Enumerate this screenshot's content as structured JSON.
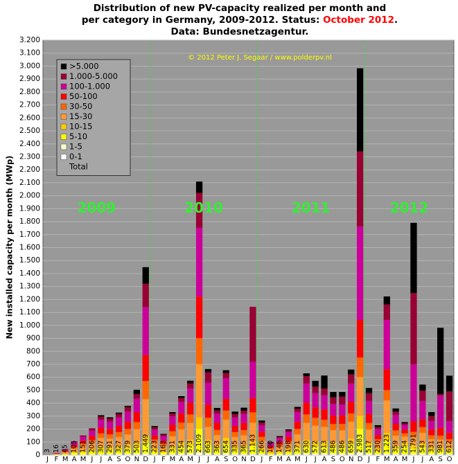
{
  "chart_data": {
    "type": "stacked_bar",
    "title": [
      "Distribution  of new PV-capacity realized per month and",
      "per category in Germany, 2009-2012. Status: ",
      "October 2012",
      ".",
      "Data: Bundesnetzagentur."
    ],
    "y_label": "New installed capacity per month (MWp)",
    "copyright": "© 2012 Peter J. Segaar / www.polderpv.nl",
    "annotations": [
      "2009",
      "2010",
      "2011",
      "2012"
    ],
    "categories": [
      "J",
      "F",
      "M",
      "A",
      "M",
      "J",
      "J",
      "A",
      "S",
      "O",
      "N",
      "D",
      "J",
      "F",
      "M",
      "A",
      "M",
      "J",
      "J",
      "A",
      "S",
      "O",
      "N",
      "D",
      "J",
      "F",
      "M",
      "A",
      "M",
      "J",
      "J",
      "A",
      "S",
      "O",
      "N",
      "D",
      "J",
      "F",
      "M",
      "A",
      "M",
      "J",
      "J",
      "A",
      "S",
      "O"
    ],
    "ylim": [
      0,
      3200
    ],
    "yticks": [
      0,
      100,
      200,
      300,
      400,
      500,
      600,
      700,
      800,
      900,
      {
        "value": 1000,
        "label": "1.000"
      },
      {
        "value": 1100,
        "label": "1.100"
      },
      {
        "value": 1200,
        "label": "1.200"
      },
      {
        "value": 1300,
        "label": "1.300"
      },
      {
        "value": 1400,
        "label": "1.400"
      },
      {
        "value": 1500,
        "label": "1.500"
      },
      {
        "value": 1600,
        "label": "1.600"
      },
      {
        "value": 1700,
        "label": "1.700"
      },
      {
        "value": 1800,
        "label": "1.800"
      },
      {
        "value": 1900,
        "label": "1.900"
      },
      {
        "value": 2000,
        "label": "2.000"
      },
      {
        "value": 2100,
        "label": "2.100"
      },
      {
        "value": 2200,
        "label": "2.200"
      },
      {
        "value": 2300,
        "label": "2.300"
      },
      {
        "value": 2400,
        "label": "2.400"
      },
      {
        "value": 2500,
        "label": "2.500"
      },
      {
        "value": 2600,
        "label": "2.600"
      },
      {
        "value": 2700,
        "label": "2.700"
      },
      {
        "value": 2800,
        "label": "2.800"
      },
      {
        "value": 2900,
        "label": "2.900"
      },
      {
        "value": 3000,
        "label": "3.000"
      },
      {
        "value": 3100,
        "label": "3.100"
      },
      {
        "value": 3200,
        "label": "3.200"
      }
    ],
    "grid": true,
    "legend": "top-left",
    "series": [
      {
        "name": "0-1",
        "color": "#ffffff",
        "values": [
          0,
          0,
          0,
          0,
          0,
          0,
          1,
          1,
          1,
          1,
          1,
          1,
          1,
          0,
          1,
          1,
          1,
          2,
          1,
          1,
          1,
          1,
          1,
          1,
          1,
          0,
          0,
          0,
          1,
          1,
          1,
          1,
          1,
          1,
          1,
          2,
          1,
          1,
          1,
          1,
          1,
          1,
          1,
          1,
          1,
          1
        ]
      },
      {
        "name": "1-5",
        "color": "#ffffcc",
        "values": [
          0,
          1,
          1,
          2,
          3,
          4,
          6,
          6,
          7,
          8,
          10,
          10,
          5,
          4,
          7,
          10,
          12,
          20,
          12,
          8,
          12,
          7,
          8,
          8,
          6,
          2,
          3,
          4,
          8,
          12,
          11,
          11,
          10,
          10,
          12,
          20,
          10,
          5,
          10,
          8,
          6,
          8,
          10,
          7,
          8,
          6
        ]
      },
      {
        "name": "5-10",
        "color": "#ffff00",
        "values": [
          1,
          2,
          6,
          14,
          20,
          25,
          35,
          33,
          36,
          40,
          50,
          80,
          25,
          18,
          38,
          50,
          60,
          180,
          60,
          40,
          70,
          36,
          40,
          60,
          28,
          11,
          16,
          22,
          40,
          60,
          55,
          55,
          50,
          48,
          65,
          180,
          50,
          24,
          100,
          38,
          60,
          40,
          45,
          30,
          30,
          25
        ]
      },
      {
        "name": "10-15",
        "color": "#ffcc00",
        "values": [
          0,
          1,
          4,
          9,
          13,
          17,
          25,
          24,
          26,
          30,
          38,
          60,
          18,
          13,
          27,
          37,
          45,
          90,
          45,
          30,
          50,
          26,
          28,
          40,
          20,
          8,
          12,
          16,
          30,
          45,
          40,
          40,
          36,
          36,
          48,
          100,
          36,
          18,
          60,
          28,
          30,
          30,
          35,
          24,
          25,
          20
        ]
      },
      {
        "name": "15-30",
        "color": "#ff9933",
        "values": [
          1,
          4,
          10,
          24,
          35,
          45,
          65,
          62,
          70,
          80,
          100,
          280,
          45,
          34,
          72,
          100,
          130,
          410,
          100,
          75,
          140,
          70,
          75,
          140,
          55,
          22,
          32,
          44,
          80,
          130,
          120,
          110,
          95,
          95,
          130,
          300,
          100,
          48,
          250,
          75,
          45,
          60,
          80,
          60,
          55,
          45
        ]
      },
      {
        "name": "30-50",
        "color": "#ff6600",
        "values": [
          0,
          2,
          5,
          12,
          17,
          24,
          35,
          33,
          37,
          42,
          55,
          140,
          25,
          18,
          38,
          52,
          65,
          200,
          70,
          40,
          70,
          37,
          40,
          80,
          30,
          12,
          17,
          23,
          42,
          65,
          60,
          55,
          48,
          50,
          65,
          150,
          50,
          25,
          80,
          40,
          25,
          40,
          45,
          30,
          30,
          25
        ]
      },
      {
        "name": "50-100",
        "color": "#ff0000",
        "values": [
          0,
          3,
          7,
          16,
          23,
          31,
          45,
          43,
          48,
          55,
          75,
          200,
          32,
          24,
          50,
          70,
          90,
          320,
          100,
          55,
          90,
          48,
          55,
          110,
          40,
          15,
          22,
          30,
          55,
          90,
          80,
          80,
          65,
          65,
          90,
          290,
          70,
          33,
          160,
          50,
          30,
          80,
          60,
          45,
          60,
          50
        ]
      },
      {
        "name": "100-1.000",
        "color": "#cc0099",
        "values": [
          1,
          3,
          9,
          20,
          30,
          42,
          60,
          57,
          65,
          80,
          105,
          370,
          45,
          35,
          65,
          90,
          110,
          530,
          170,
          70,
          160,
          65,
          70,
          280,
          50,
          20,
          28,
          38,
          75,
          150,
          110,
          110,
          90,
          85,
          140,
          720,
          100,
          45,
          380,
          70,
          35,
          440,
          140,
          65,
          250,
          90
        ]
      },
      {
        "name": "1.000-5.000",
        "color": "#990033",
        "values": [
          0,
          0,
          3,
          8,
          10,
          18,
          25,
          22,
          27,
          33,
          35,
          180,
          17,
          12,
          23,
          30,
          40,
          270,
          80,
          24,
          40,
          25,
          25,
          424,
          20,
          6,
          10,
          13,
          25,
          55,
          50,
          50,
          50,
          60,
          70,
          580,
          60,
          16,
          120,
          25,
          12,
          550,
          80,
          40,
          10,
          228
        ]
      },
      {
        "name": ">5.000",
        "color": "#000000",
        "values": [
          0,
          0,
          0,
          0,
          0,
          0,
          10,
          10,
          10,
          10,
          34,
          128,
          10,
          5,
          10,
          14,
          20,
          87,
          25,
          20,
          21,
          20,
          23,
          0,
          16,
          4,
          6,
          8,
          15,
          22,
          45,
          101,
          41,
          36,
          38,
          641,
          40,
          15,
          62,
          24,
          10,
          542,
          47,
          29,
          512,
          122
        ]
      }
    ],
    "total": {
      "name": "Total",
      "values": [
        3,
        16,
        45,
        105,
        151,
        206,
        307,
        291,
        327,
        379,
        503,
        1449,
        223,
        163,
        331,
        454,
        573,
        2109,
        663,
        363,
        654,
        335,
        365,
        1143,
        266,
        100,
        146,
        198,
        371,
        630,
        572,
        613,
        486,
        486,
        659,
        2983,
        517,
        230,
        1223,
        359,
        254,
        1791,
        543,
        331,
        981,
        612
      ],
      "value_labels": [
        "3",
        "16",
        "45",
        "105",
        "151",
        "206",
        "307",
        "291",
        "327",
        "379",
        "503",
        "1.449",
        "223",
        "163",
        "331",
        "454",
        "573",
        "2.109",
        "663",
        "363",
        "654",
        "335",
        "365",
        "1.143",
        "266",
        "100",
        "146",
        "198",
        "371",
        "630",
        "572",
        "613",
        "486",
        "486",
        "659",
        "2.983",
        "517",
        "230",
        "1.223",
        "359",
        "254",
        "1.791",
        "543",
        "331",
        "981",
        "612"
      ]
    }
  }
}
